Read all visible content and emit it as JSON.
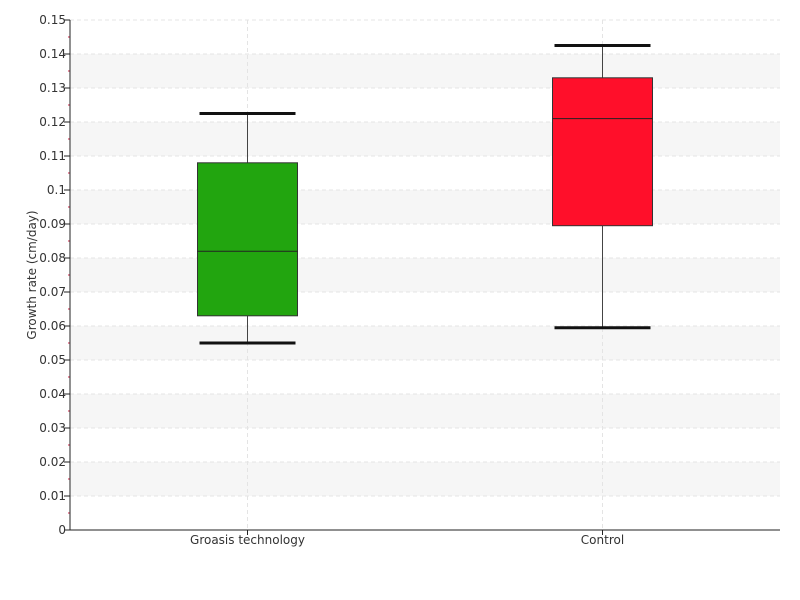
{
  "chart_data": {
    "type": "boxplot",
    "title": "",
    "xlabel": "",
    "ylabel": "Growth rate (cm/day)",
    "ylim": [
      0,
      0.15
    ],
    "yticks": [
      "0",
      "0.01",
      "0.02",
      "0.03",
      "0.04",
      "0.05",
      "0.06",
      "0.07",
      "0.08",
      "0.09",
      "0.1",
      "0.11",
      "0.12",
      "0.13",
      "0.14",
      "0.15"
    ],
    "grid": "horizontal bands and dashed gridlines",
    "categories": [
      "Groasis technology",
      "Control"
    ],
    "boxes": [
      {
        "category": "Groasis technology",
        "whisker_low": 0.055,
        "q1": 0.063,
        "median": 0.082,
        "q3": 0.108,
        "whisker_high": 0.1225,
        "color": "#22a50f"
      },
      {
        "category": "Control",
        "whisker_low": 0.0595,
        "q1": 0.0895,
        "median": 0.121,
        "q3": 0.133,
        "whisker_high": 0.1425,
        "color": "#ff0f2a"
      }
    ]
  }
}
